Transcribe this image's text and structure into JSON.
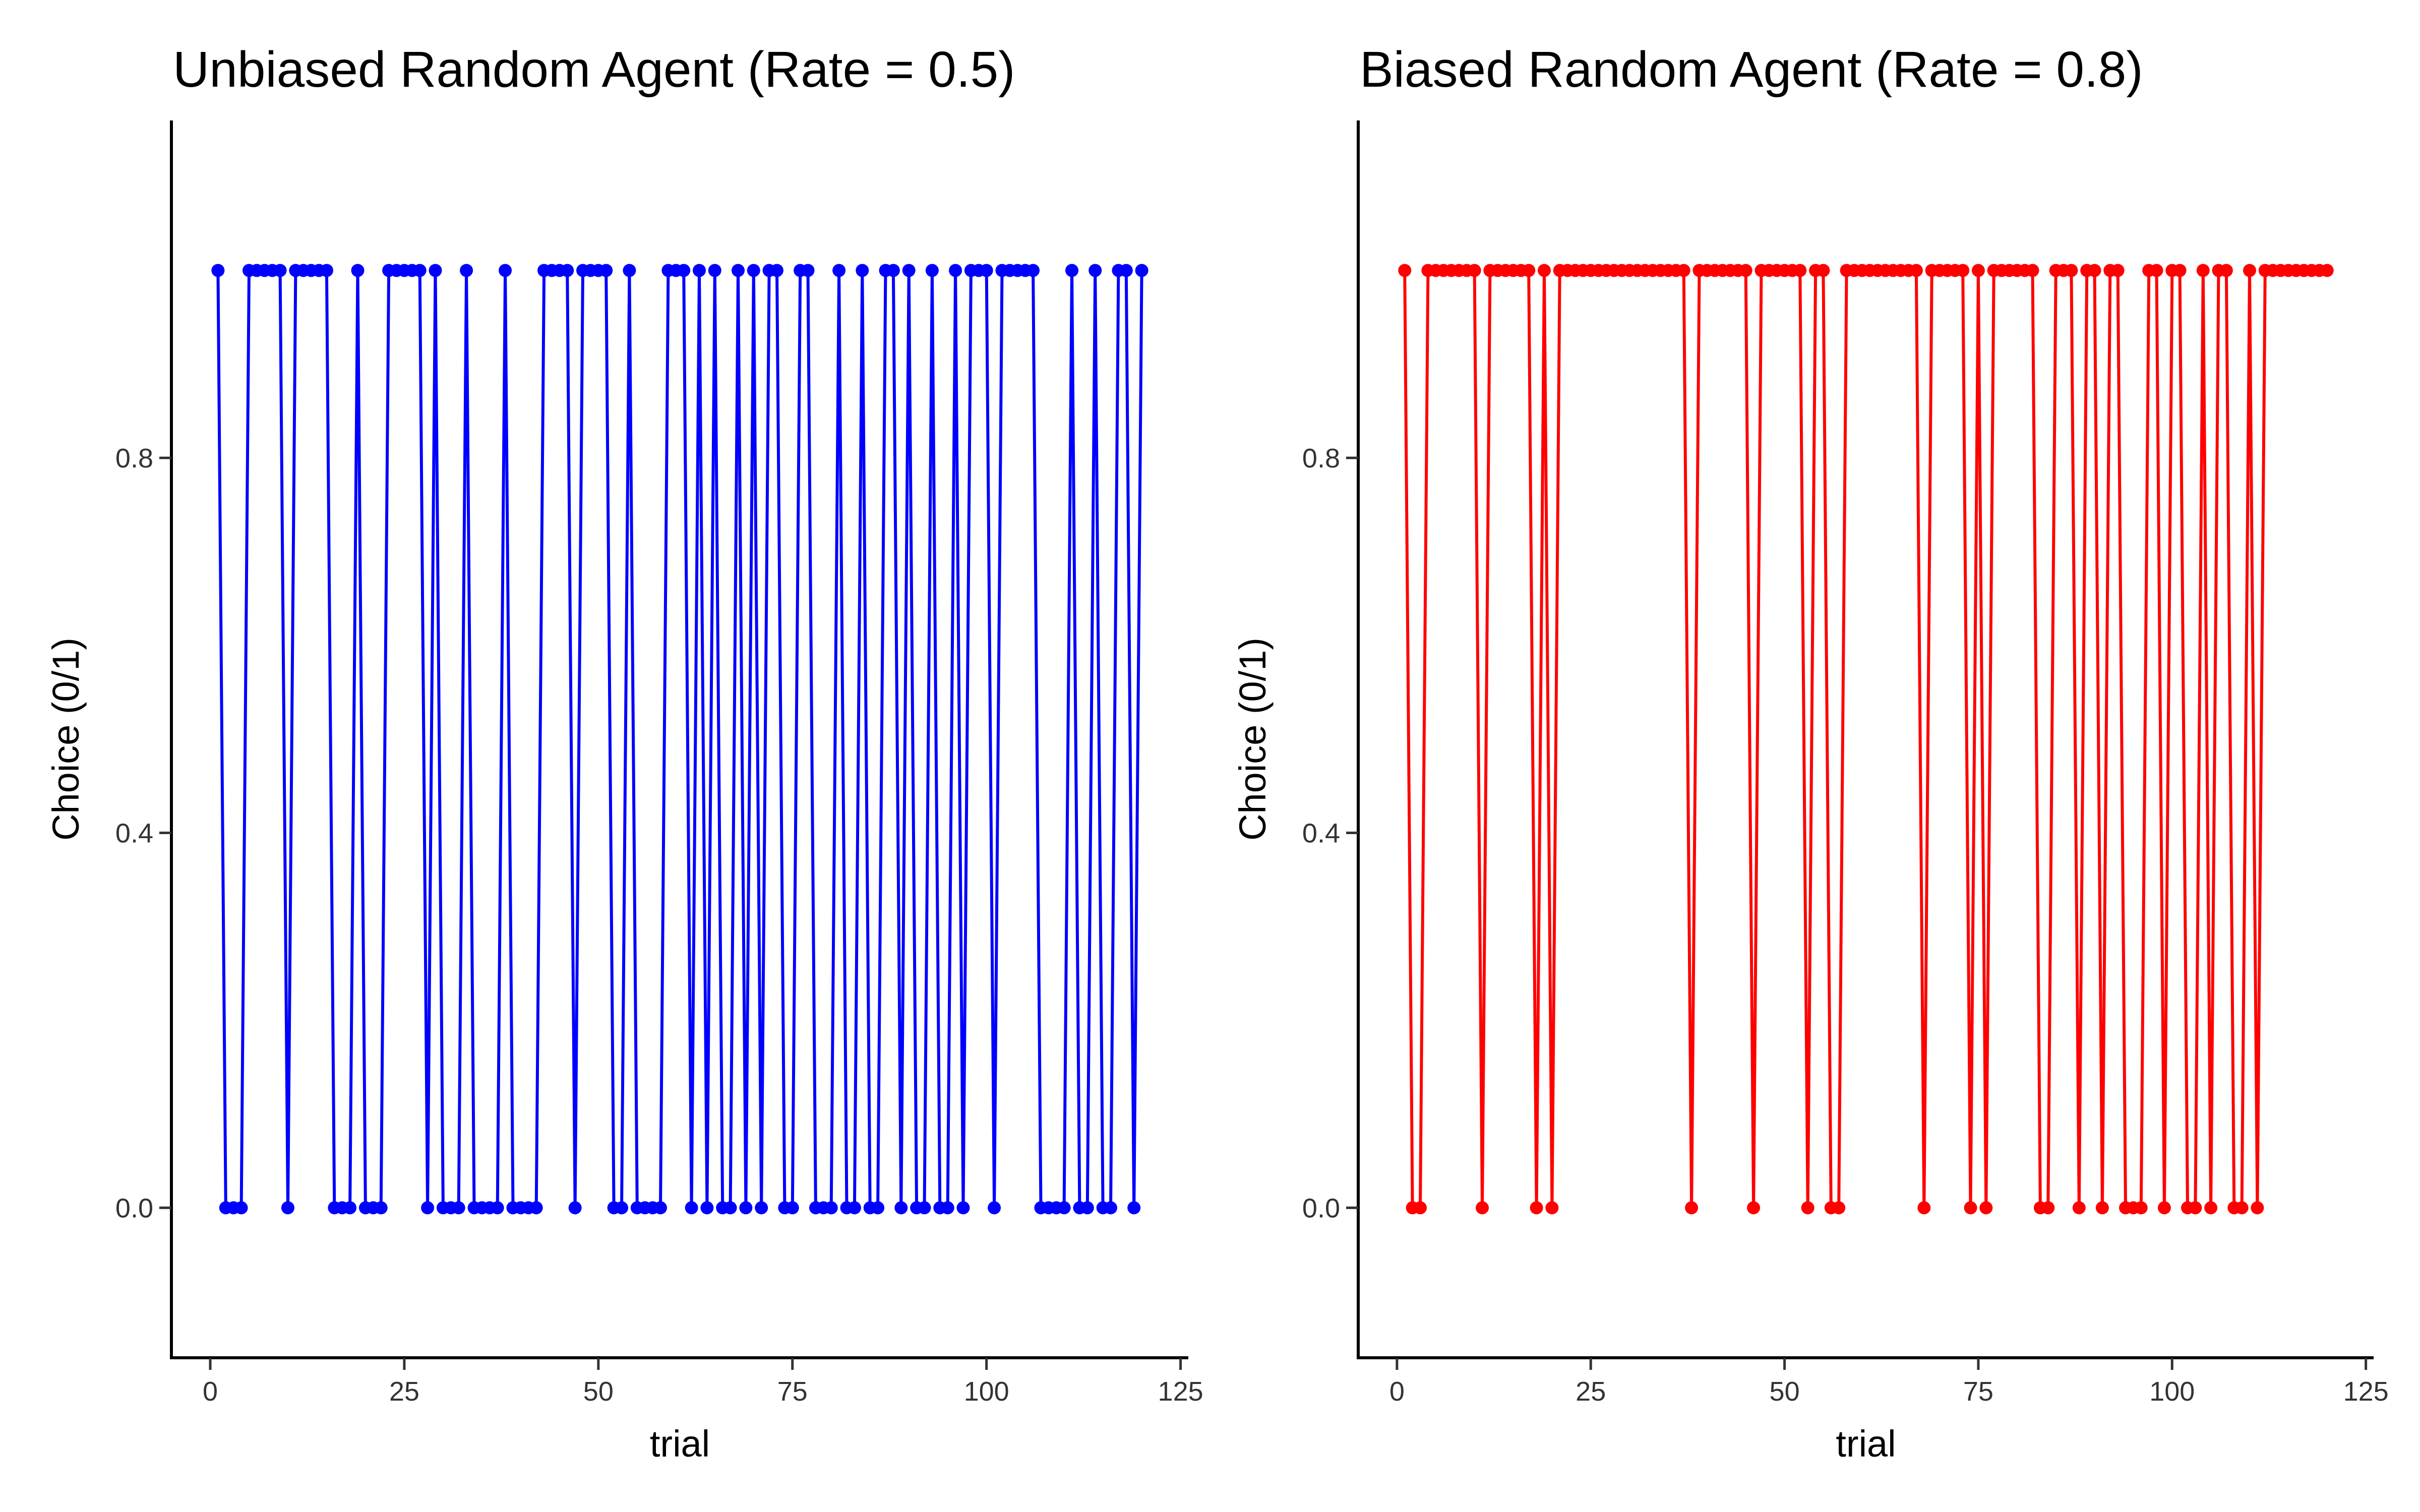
{
  "chart_data": [
    {
      "type": "line",
      "title": "Unbiased Random Agent (Rate = 0.5)",
      "xlabel": "trial",
      "ylabel": "Choice (0/1)",
      "color": "#0000FF",
      "xlim": [
        -5,
        126
      ],
      "ylim": [
        -0.16,
        1.16
      ],
      "xticks": [
        0,
        25,
        50,
        75,
        100,
        125
      ],
      "xtick_labels": [
        "0",
        "25",
        "50",
        "75",
        "100",
        "125"
      ],
      "yticks": [
        0,
        0.4,
        0.8
      ],
      "ytick_labels": [
        "0.0",
        "0.4",
        "0.8"
      ],
      "grid": false,
      "x_range": [
        1,
        120
      ],
      "ones_at_trials": [
        1,
        5,
        6,
        7,
        8,
        9,
        11,
        12,
        13,
        14,
        15,
        19,
        23,
        24,
        25,
        26,
        27,
        29,
        33,
        38,
        43,
        44,
        45,
        46,
        48,
        49,
        50,
        51,
        54,
        59,
        60,
        61,
        63,
        65,
        68,
        70,
        72,
        73,
        76,
        77,
        81,
        84,
        87,
        88,
        90,
        93,
        96,
        98,
        99,
        100,
        102,
        103,
        104,
        105,
        106,
        111,
        114,
        117,
        118,
        120
      ]
    },
    {
      "type": "line",
      "title": "Biased Random Agent (Rate = 0.8)",
      "xlabel": "trial",
      "ylabel": "Choice (0/1)",
      "color": "#FF0000",
      "xlim": [
        -5,
        126
      ],
      "ylim": [
        -0.16,
        1.16
      ],
      "xticks": [
        0,
        25,
        50,
        75,
        100,
        125
      ],
      "xtick_labels": [
        "0",
        "25",
        "50",
        "75",
        "100",
        "125"
      ],
      "yticks": [
        0,
        0.4,
        0.8
      ],
      "ytick_labels": [
        "0.0",
        "0.4",
        "0.8"
      ],
      "grid": false,
      "x_range": [
        1,
        120
      ],
      "zeros_at_trials": [
        2,
        3,
        11,
        18,
        20,
        38,
        46,
        53,
        56,
        57,
        68,
        74,
        76,
        83,
        84,
        88,
        91,
        94,
        95,
        96,
        99,
        102,
        103,
        105,
        108,
        109,
        111
      ]
    }
  ]
}
